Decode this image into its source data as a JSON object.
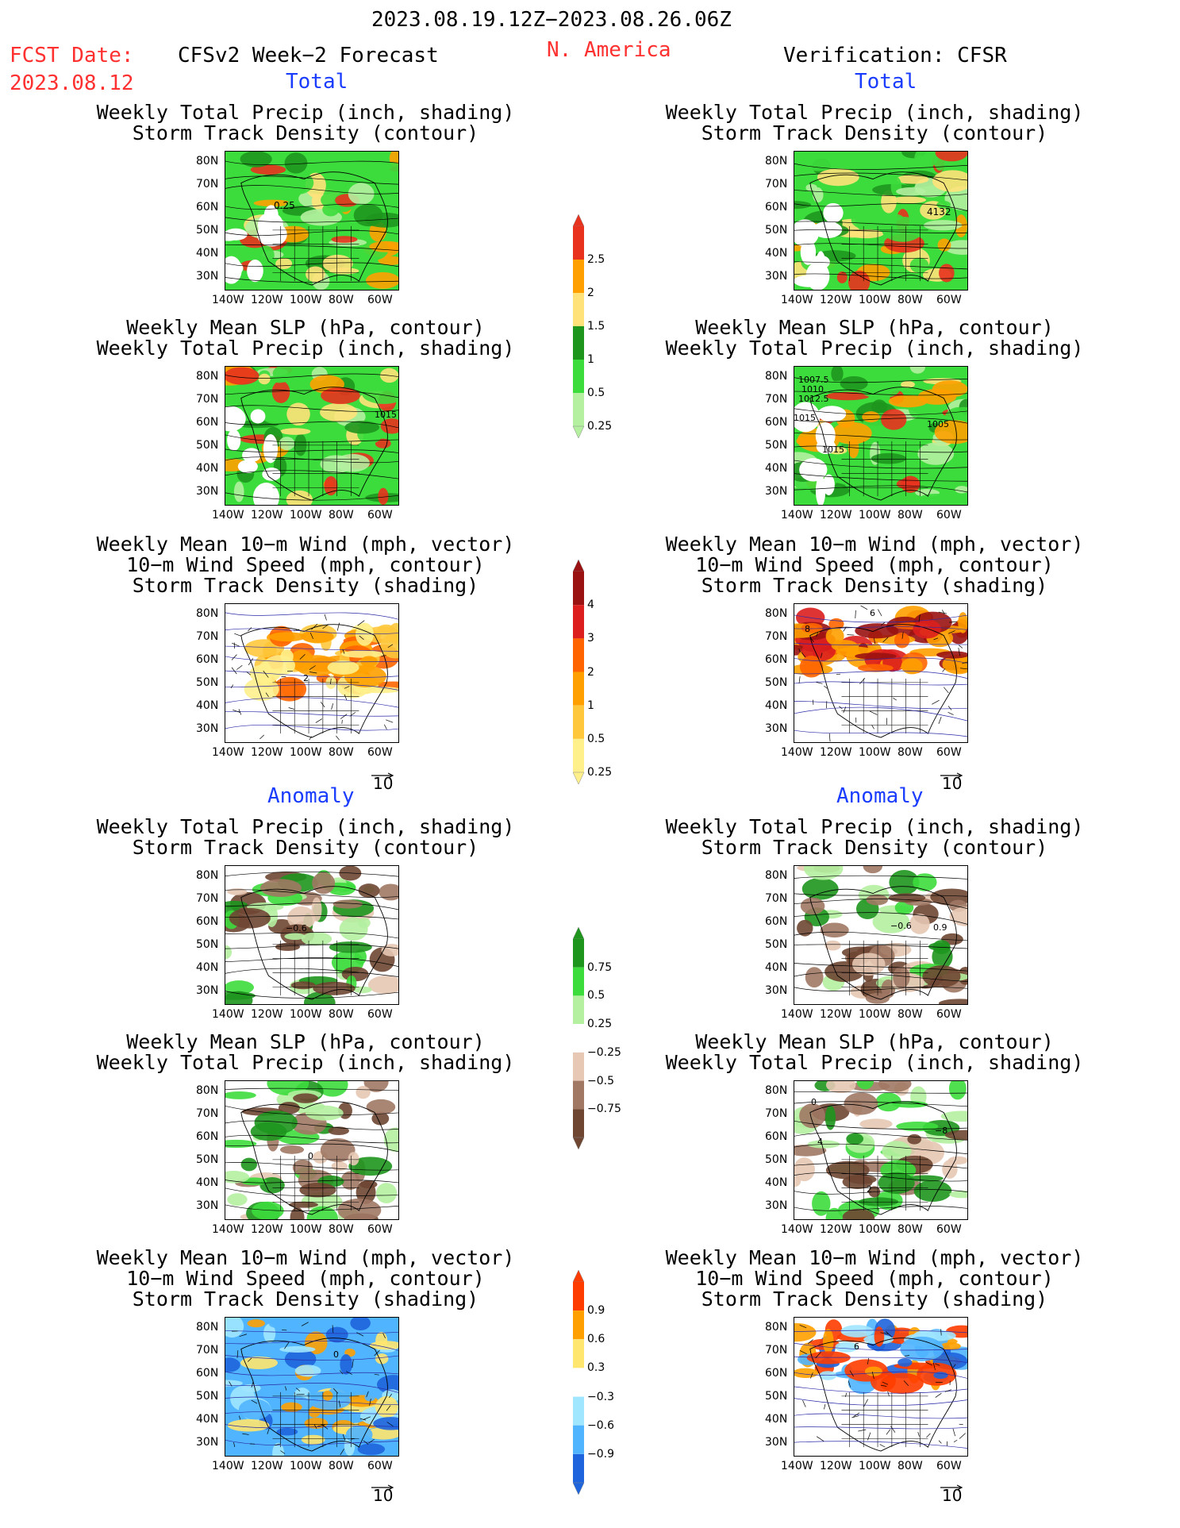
{
  "header": {
    "date_range": "2023.08.19.12Z−2023.08.26.06Z",
    "fcst_label": "FCST Date:",
    "fcst_date": "2023.08.12",
    "model": "CFSv2 Week−2 Forecast",
    "region": "N. America",
    "verification": "Verification: CFSR"
  },
  "sections": {
    "total": "Total",
    "anomaly": "Anomaly"
  },
  "panel_titles": {
    "precip_storm": [
      "Weekly Total Precip (inch, shading)",
      "Storm Track Density (contour)"
    ],
    "slp_precip": [
      "Weekly Mean SLP (hPa, contour)",
      "Weekly Total Precip (inch, shading)"
    ],
    "wind_storm": [
      "Weekly Mean 10−m Wind (mph, vector)",
      "10−m Wind Speed (mph, contour)",
      "Storm Track Density (shading)"
    ]
  },
  "axes": {
    "lat_labels": [
      "80N",
      "70N",
      "60N",
      "50N",
      "40N",
      "30N"
    ],
    "lon_labels": [
      "140W",
      "120W",
      "100W",
      "80W",
      "60W"
    ]
  },
  "vector_ref": "10",
  "colorbars": {
    "precip_total": {
      "labels": [
        "2.5",
        "2",
        "1.5",
        "1",
        "0.5",
        "0.25"
      ],
      "colors": [
        "#e8321e",
        "#ffa000",
        "#ffe27a",
        "#1e961e",
        "#3cdc3c",
        "#b4f0a0"
      ]
    },
    "storm_total": {
      "labels": [
        "4",
        "3",
        "2",
        "1",
        "0.5",
        "0.25"
      ],
      "colors": [
        "#9a1212",
        "#dc1e1e",
        "#ff6400",
        "#ffa000",
        "#ffc83c",
        "#fff08c"
      ]
    },
    "precip_anom": {
      "labels": [
        "0.75",
        "0.5",
        "0.25",
        "−0.25",
        "−0.5",
        "−0.75"
      ],
      "colors": [
        "#1e961e",
        "#3cdc3c",
        "#b4f0a0",
        "#ffffff",
        "#e6c8b4",
        "#a07864",
        "#6e4632"
      ]
    },
    "storm_anom": {
      "labels": [
        "0.9",
        "0.6",
        "0.3",
        "−0.3",
        "−0.6",
        "−0.9"
      ],
      "colors": [
        "#ff3c00",
        "#ffa000",
        "#ffe66e",
        "#ffffff",
        "#a0e6ff",
        "#50b4ff",
        "#1e64dc"
      ]
    }
  },
  "contour_labels": {
    "r1l": "0.25",
    "r1r": "4132",
    "r2l": "1015",
    "r2r_a": "1007.5",
    "r2r_b": "1010",
    "r2r_c": "1012.5",
    "r2r_d": "1005",
    "r2r_e": "1015",
    "r2r_f": "1015",
    "r3l": "2",
    "r3r_a": "6",
    "r3r_b": "8",
    "r4l": "−0.6",
    "r4r_a": "−0.6",
    "r4r_b": "0.9",
    "r5l": "0",
    "r5r_a": "0",
    "r5r_b": "4",
    "r5r_c": "−8",
    "r5r_d": "2",
    "r6l": "0",
    "r6r": "6"
  }
}
